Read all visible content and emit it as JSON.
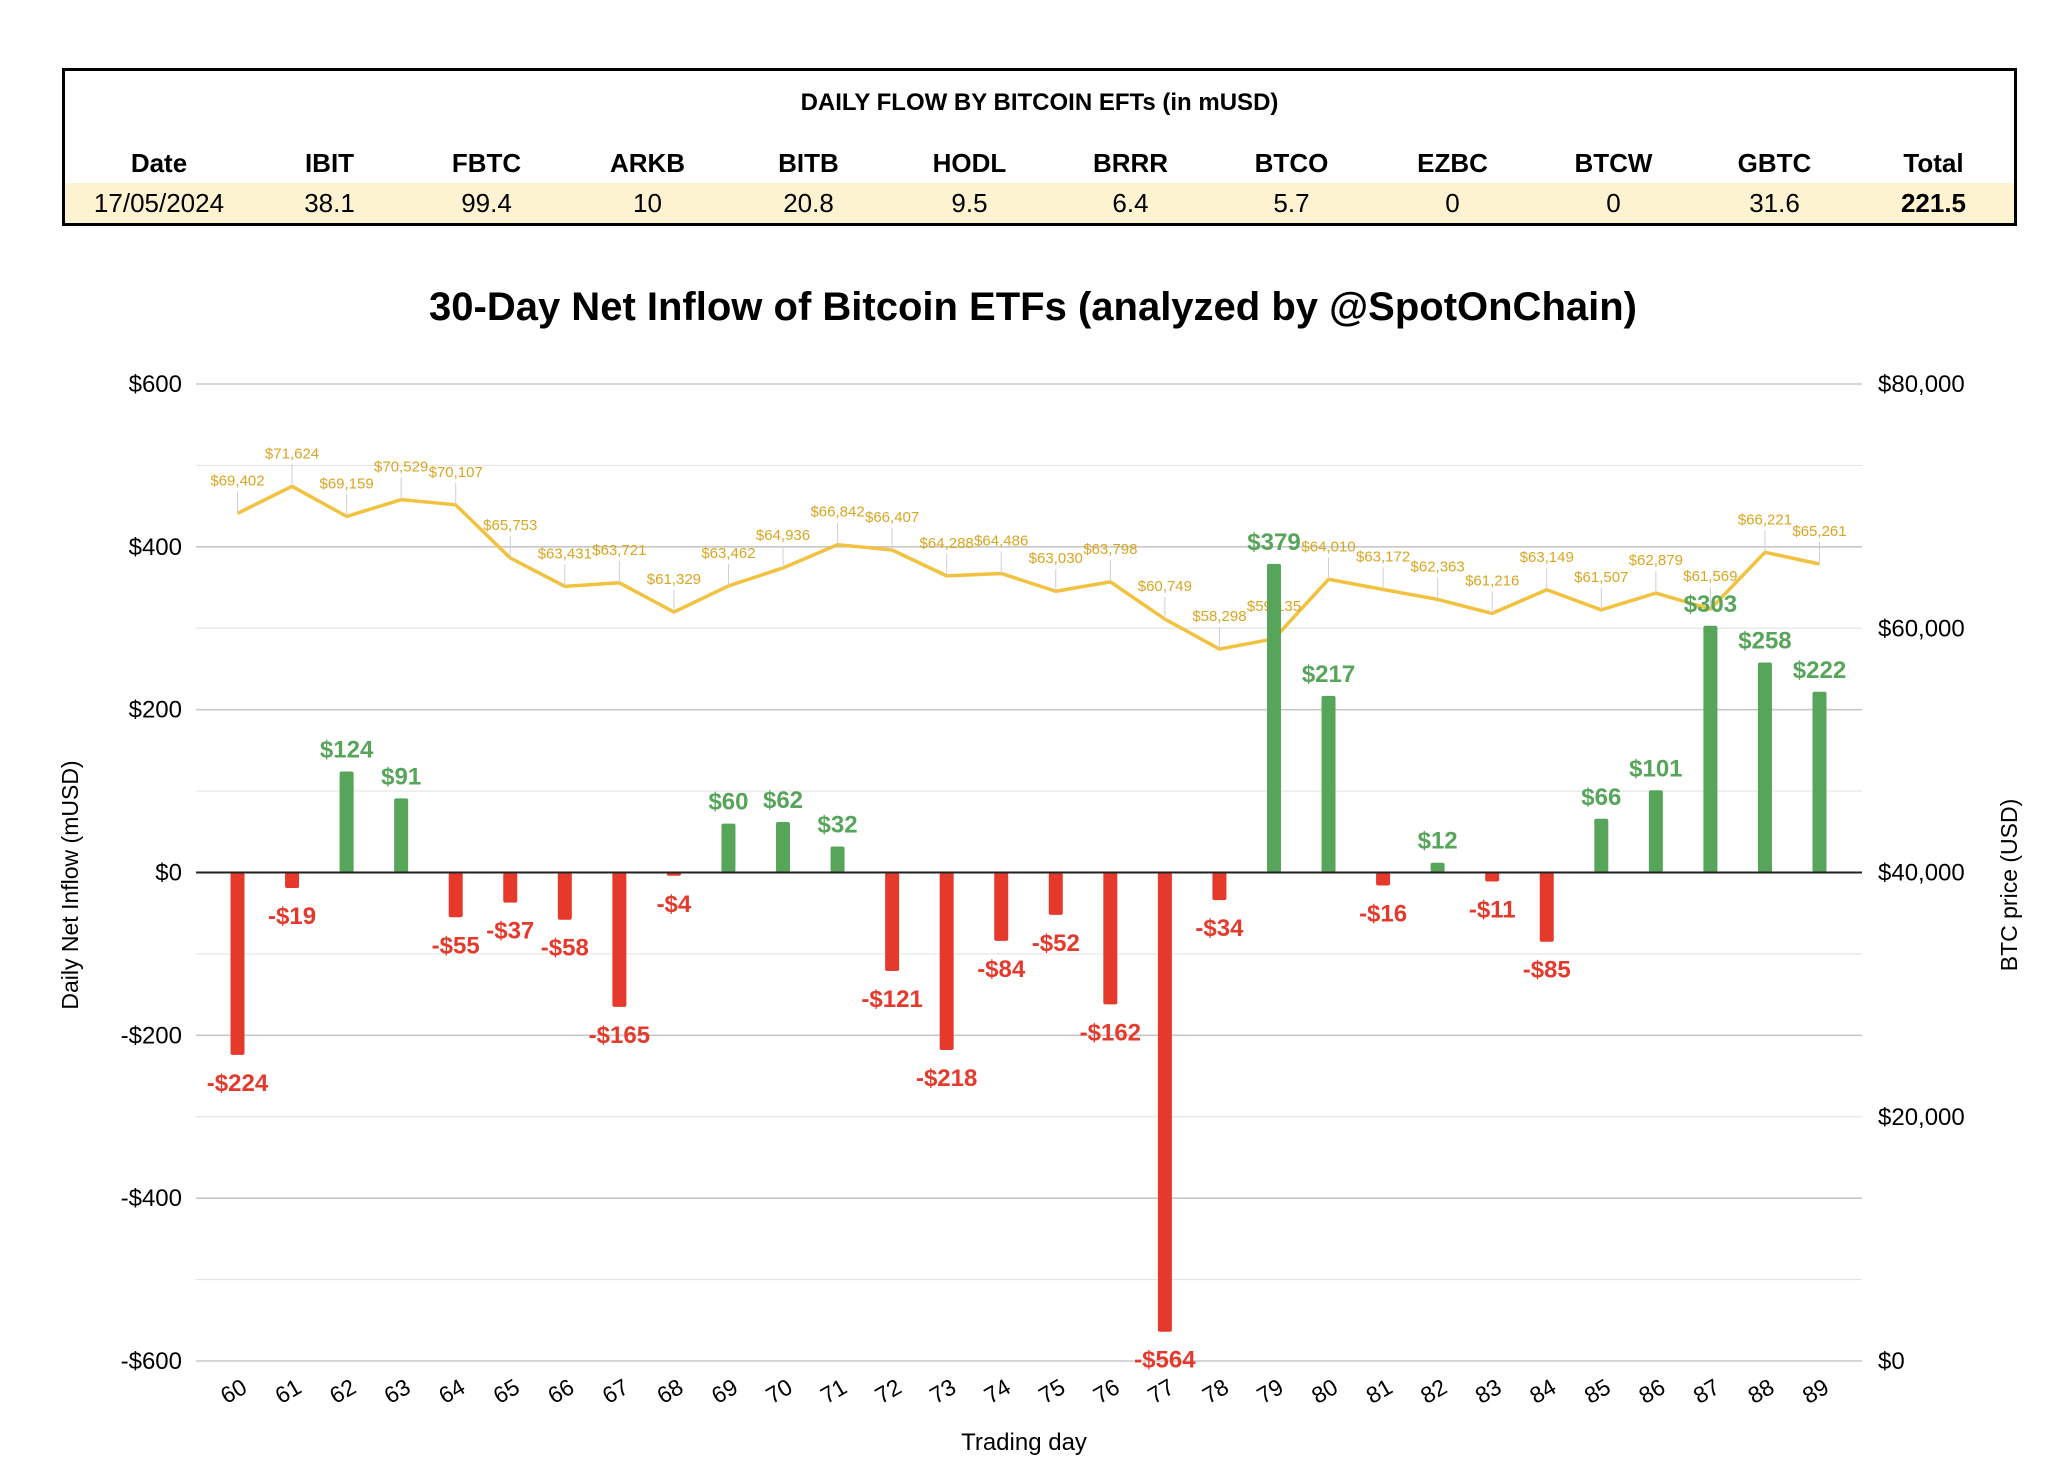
{
  "table": {
    "title": "DAILY FLOW BY BITCOIN EFTs (in mUSD)",
    "columns": [
      "Date",
      "IBIT",
      "FBTC",
      "ARKB",
      "BITB",
      "HODL",
      "BRRR",
      "BTCO",
      "EZBC",
      "BTCW",
      "GBTC",
      "Total"
    ],
    "row": [
      "17/05/2024",
      "38.1",
      "99.4",
      "10",
      "20.8",
      "9.5",
      "6.4",
      "5.7",
      "0",
      "0",
      "31.6",
      "221.5"
    ],
    "highlight_color": "#fdf3d0"
  },
  "chart_data": {
    "type": "bar",
    "title": "30-Day Net Inflow of Bitcoin ETFs (analyzed by @SpotOnChain)",
    "xlabel": "Trading day",
    "ylabel": "Daily Net Inflow (mUSD)",
    "y2label": "BTC price (USD)",
    "ylim": [
      -600,
      600
    ],
    "y2lim": [
      0,
      80000
    ],
    "yticks": [
      "$600",
      "$400",
      "$200",
      "$0",
      "-$200",
      "-$400",
      "-$600"
    ],
    "y2ticks": [
      "$80,000",
      "$60,000",
      "$40,000",
      "$20,000",
      "$0"
    ],
    "grid": true,
    "categories": [
      "60",
      "61",
      "62",
      "63",
      "64",
      "65",
      "66",
      "67",
      "68",
      "69",
      "70",
      "71",
      "72",
      "73",
      "74",
      "75",
      "76",
      "77",
      "78",
      "79",
      "80",
      "81",
      "82",
      "83",
      "84",
      "85",
      "86",
      "87",
      "88",
      "89"
    ],
    "series": [
      {
        "type": "bar",
        "values": [
          -224,
          -19,
          124,
          91,
          -55,
          -37,
          -58,
          -165,
          -4,
          60,
          62,
          32,
          -121,
          -218,
          -84,
          -52,
          -162,
          -564,
          -34,
          379,
          217,
          -16,
          12,
          -11,
          -85,
          66,
          101,
          303,
          258,
          222
        ],
        "labels": [
          "-$224",
          "-$19",
          "$124",
          "$91",
          "-$55",
          "-$37",
          "-$58",
          "-$165",
          "-$4",
          "$60",
          "$62",
          "$32",
          "-$121",
          "-$218",
          "-$84",
          "-$52",
          "-$162",
          "-$564",
          "-$34",
          "$379",
          "$217",
          "-$16",
          "$12",
          "-$11",
          "-$85",
          "$66",
          "$101",
          "$303",
          "$258",
          "$222"
        ],
        "positive_color": "#57a55a",
        "negative_color": "#e53a2b"
      },
      {
        "type": "line",
        "axis": "right",
        "values": [
          69402,
          71624,
          69159,
          70529,
          70107,
          65753,
          63431,
          63721,
          61329,
          63462,
          64936,
          66842,
          66407,
          64288,
          64486,
          63030,
          63798,
          60749,
          58298,
          59135,
          64010,
          63172,
          62363,
          61216,
          63149,
          61507,
          62879,
          61569,
          66221,
          65261
        ],
        "labels": [
          "$69,402",
          "$71,624",
          "$69,159",
          "$70,529",
          "$70,107",
          "$65,753",
          "$63,431",
          "$63,721",
          "$61,329",
          "$63,462",
          "$64,936",
          "$66,842",
          "$66,407",
          "$64,288",
          "$64,486",
          "$63,030",
          "$63,798",
          "$60,749",
          "$58,298",
          "$59,135",
          "$64,010",
          "$63,172",
          "$62,363",
          "$61,216",
          "$63,149",
          "$61,507",
          "$62,879",
          "$61,569",
          "$66,221",
          "$65,261"
        ],
        "color": "#f2c13d"
      }
    ]
  }
}
